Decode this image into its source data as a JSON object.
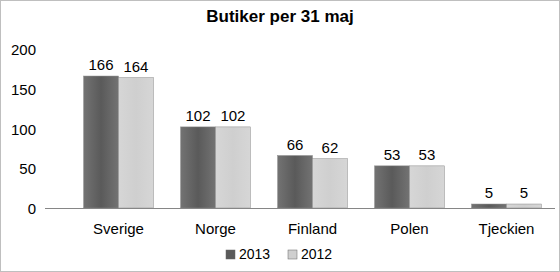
{
  "chart_data": {
    "type": "bar",
    "title": "Butiker per 31 maj",
    "categories": [
      "Sverige",
      "Norge",
      "Finland",
      "Polen",
      "Tjeckien"
    ],
    "series": [
      {
        "name": "2013",
        "color": "#5a5a5a",
        "values": [
          166,
          102,
          66,
          53,
          5
        ]
      },
      {
        "name": "2012",
        "color": "#cfcfcf",
        "values": [
          164,
          102,
          62,
          53,
          5
        ]
      }
    ],
    "ylim": [
      0,
      200
    ],
    "yticks": [
      0,
      50,
      100,
      150,
      200
    ],
    "grid": false,
    "legend": "bottom",
    "data_labels": true
  }
}
